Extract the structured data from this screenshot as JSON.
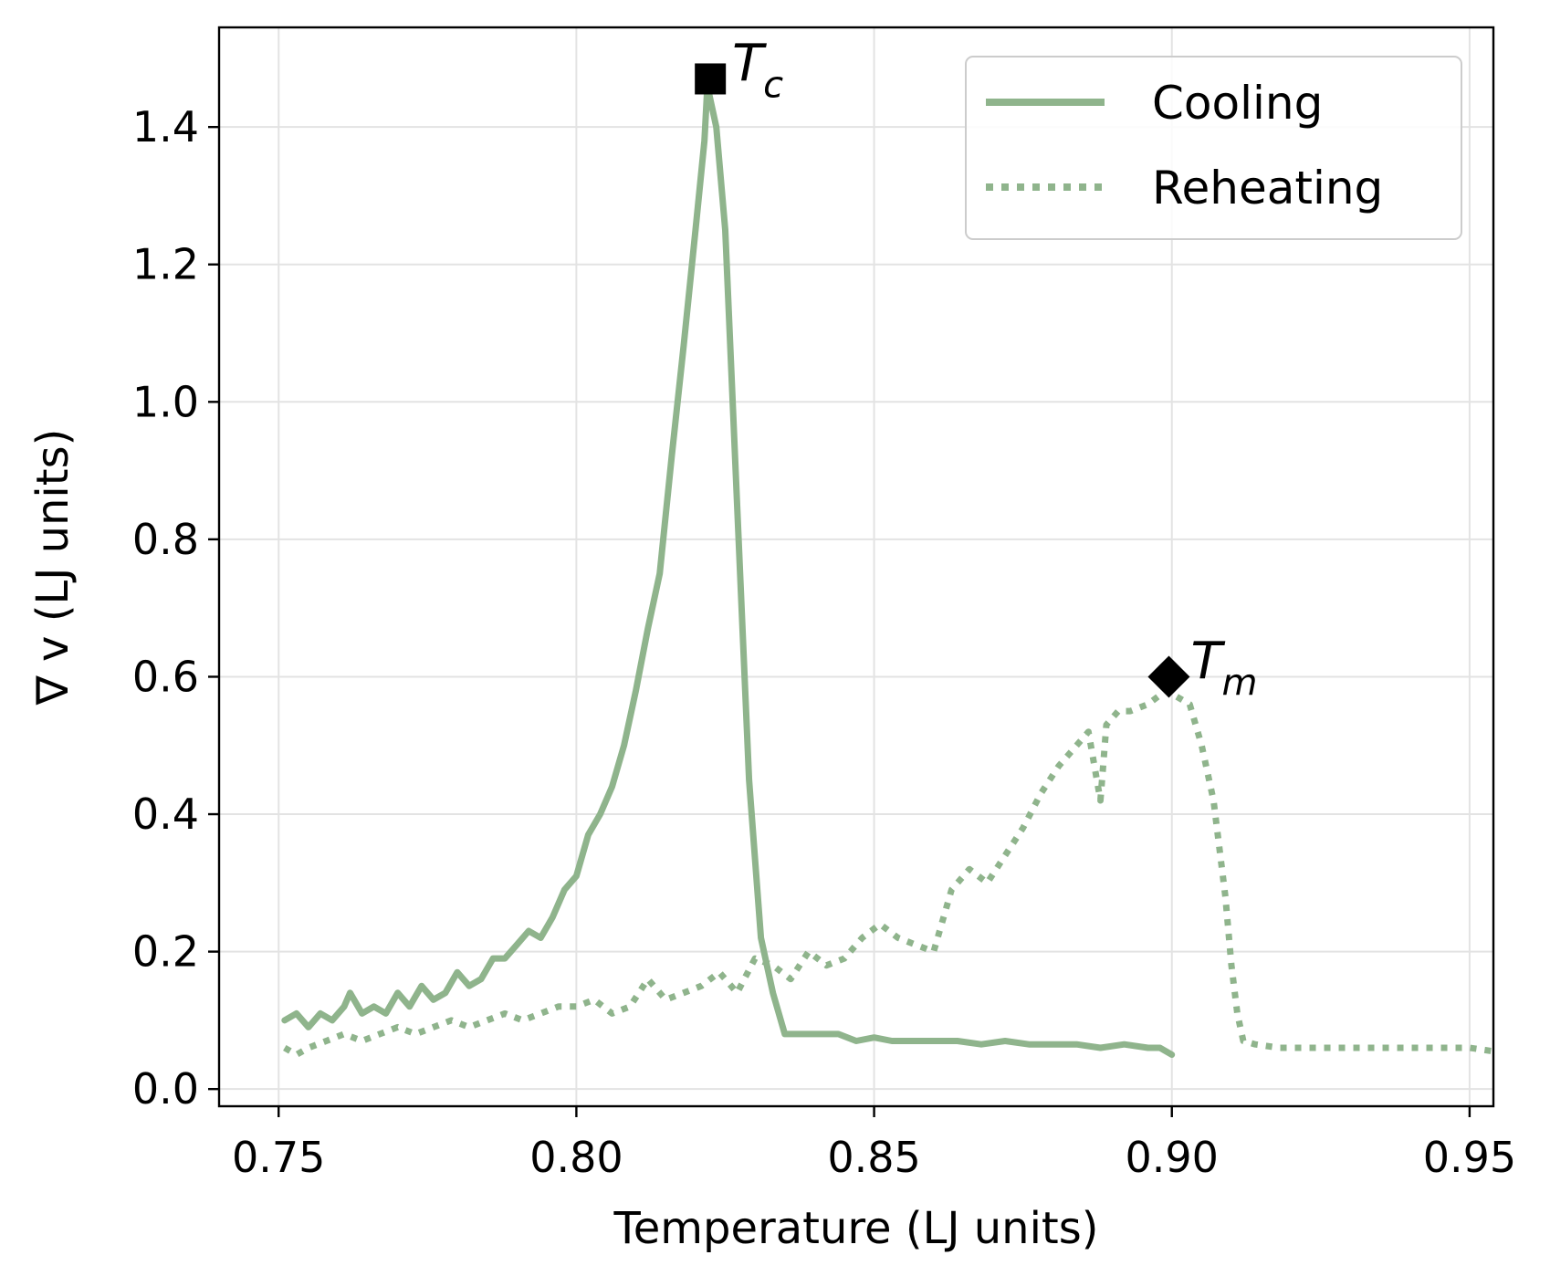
{
  "chart_data": {
    "type": "line",
    "title": "",
    "xlabel": "Temperature (LJ units)",
    "ylabel": "∇ v (LJ units)",
    "xlim": [
      0.74,
      0.954
    ],
    "ylim": [
      -0.025,
      1.545
    ],
    "xticks": [
      0.75,
      0.8,
      0.85,
      0.9,
      0.95
    ],
    "xtick_labels": [
      "0.75",
      "0.80",
      "0.85",
      "0.90",
      "0.95"
    ],
    "yticks": [
      0.0,
      0.2,
      0.4,
      0.6,
      0.8,
      1.0,
      1.2,
      1.4
    ],
    "ytick_labels": [
      "0.0",
      "0.2",
      "0.4",
      "0.6",
      "0.8",
      "1.0",
      "1.2",
      "1.4"
    ],
    "grid": true,
    "legend_position": "top-right",
    "color": "#8fb48c",
    "series": [
      {
        "name": "Cooling",
        "style": "solid",
        "x": [
          0.751,
          0.753,
          0.755,
          0.757,
          0.759,
          0.761,
          0.762,
          0.764,
          0.766,
          0.768,
          0.77,
          0.772,
          0.774,
          0.776,
          0.778,
          0.78,
          0.782,
          0.784,
          0.786,
          0.788,
          0.79,
          0.792,
          0.794,
          0.796,
          0.798,
          0.8,
          0.802,
          0.804,
          0.806,
          0.808,
          0.81,
          0.812,
          0.814,
          0.816,
          0.818,
          0.82,
          0.8215,
          0.822,
          0.8235,
          0.825,
          0.827,
          0.829,
          0.831,
          0.833,
          0.835,
          0.838,
          0.841,
          0.844,
          0.847,
          0.85,
          0.853,
          0.856,
          0.86,
          0.864,
          0.868,
          0.872,
          0.876,
          0.88,
          0.884,
          0.888,
          0.892,
          0.896,
          0.898,
          0.9
        ],
        "y": [
          0.1,
          0.11,
          0.09,
          0.11,
          0.1,
          0.12,
          0.14,
          0.11,
          0.12,
          0.11,
          0.14,
          0.12,
          0.15,
          0.13,
          0.14,
          0.17,
          0.15,
          0.16,
          0.19,
          0.19,
          0.21,
          0.23,
          0.22,
          0.25,
          0.29,
          0.31,
          0.37,
          0.4,
          0.44,
          0.5,
          0.58,
          0.67,
          0.75,
          0.92,
          1.08,
          1.25,
          1.38,
          1.46,
          1.4,
          1.25,
          0.85,
          0.45,
          0.22,
          0.14,
          0.08,
          0.08,
          0.08,
          0.08,
          0.07,
          0.075,
          0.07,
          0.07,
          0.07,
          0.07,
          0.065,
          0.07,
          0.065,
          0.065,
          0.065,
          0.06,
          0.065,
          0.06,
          0.06,
          0.05
        ]
      },
      {
        "name": "Reheating",
        "style": "dotted",
        "x": [
          0.751,
          0.753,
          0.755,
          0.758,
          0.761,
          0.764,
          0.767,
          0.77,
          0.773,
          0.776,
          0.779,
          0.782,
          0.785,
          0.788,
          0.791,
          0.794,
          0.797,
          0.8,
          0.803,
          0.806,
          0.809,
          0.812,
          0.815,
          0.818,
          0.821,
          0.824,
          0.827,
          0.83,
          0.833,
          0.836,
          0.839,
          0.842,
          0.845,
          0.848,
          0.851,
          0.854,
          0.857,
          0.86,
          0.863,
          0.866,
          0.869,
          0.872,
          0.875,
          0.878,
          0.881,
          0.884,
          0.886,
          0.888,
          0.889,
          0.891,
          0.893,
          0.896,
          0.899,
          0.901,
          0.903,
          0.905,
          0.907,
          0.909,
          0.91,
          0.911,
          0.912,
          0.914,
          0.918,
          0.922,
          0.926,
          0.93,
          0.934,
          0.938,
          0.942,
          0.946,
          0.95,
          0.954
        ],
        "y": [
          0.06,
          0.05,
          0.06,
          0.07,
          0.08,
          0.07,
          0.08,
          0.09,
          0.08,
          0.09,
          0.1,
          0.09,
          0.1,
          0.11,
          0.1,
          0.11,
          0.12,
          0.12,
          0.13,
          0.11,
          0.12,
          0.16,
          0.13,
          0.14,
          0.15,
          0.17,
          0.14,
          0.19,
          0.18,
          0.16,
          0.2,
          0.18,
          0.19,
          0.22,
          0.24,
          0.22,
          0.21,
          0.2,
          0.29,
          0.32,
          0.3,
          0.34,
          0.38,
          0.43,
          0.47,
          0.5,
          0.52,
          0.42,
          0.53,
          0.55,
          0.55,
          0.56,
          0.58,
          0.57,
          0.56,
          0.5,
          0.42,
          0.28,
          0.18,
          0.11,
          0.07,
          0.065,
          0.06,
          0.06,
          0.06,
          0.06,
          0.06,
          0.06,
          0.06,
          0.06,
          0.06,
          0.055
        ]
      }
    ],
    "annotations": [
      {
        "label": "T",
        "subscript": "c",
        "marker": "square",
        "x": 0.8225,
        "y": 1.47
      },
      {
        "label": "T",
        "subscript": "m",
        "marker": "diamond",
        "x": 0.8995,
        "y": 0.6
      }
    ]
  }
}
